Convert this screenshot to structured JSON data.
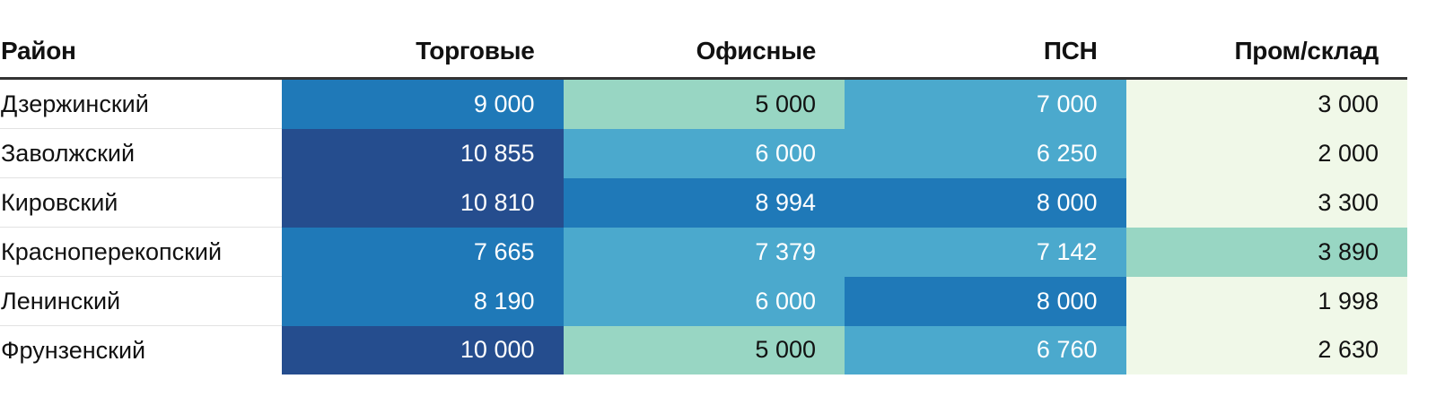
{
  "chart_data": {
    "type": "table",
    "title": "",
    "columns": [
      "Район",
      "Торговые",
      "Офисные",
      "ПСН",
      "Пром/склад"
    ],
    "rows": [
      {
        "district": "Дзержинский",
        "values": [
          "9 000",
          "5 000",
          "7 000",
          "3 000"
        ]
      },
      {
        "district": "Заволжский",
        "values": [
          "10 855",
          "6 000",
          "6 250",
          "2 000"
        ]
      },
      {
        "district": "Кировский",
        "values": [
          "10 810",
          "8 994",
          "8 000",
          "3 300"
        ]
      },
      {
        "district": "Красноперекопский",
        "values": [
          "7 665",
          "7 379",
          "7 142",
          "3 890"
        ]
      },
      {
        "district": "Ленинский",
        "values": [
          "8 190",
          "6 000",
          "8 000",
          "1 998"
        ]
      },
      {
        "district": "Фрунзенский",
        "values": [
          "10 000",
          "5 000",
          "6 760",
          "2 630"
        ]
      }
    ],
    "color_scale": [
      {
        "min": 0,
        "max": 3500,
        "color": "#f0f8e8",
        "text": "#111111"
      },
      {
        "min": 3500,
        "max": 5500,
        "color": "#98d6c3",
        "text": "#111111"
      },
      {
        "min": 5500,
        "max": 7500,
        "color": "#4ba9cd",
        "text": "#ffffff"
      },
      {
        "min": 7500,
        "max": 10000,
        "color": "#1f79b8",
        "text": "#ffffff"
      },
      {
        "min": 10000,
        "max": 12000,
        "color": "#254d8e",
        "text": "#ffffff"
      }
    ]
  }
}
